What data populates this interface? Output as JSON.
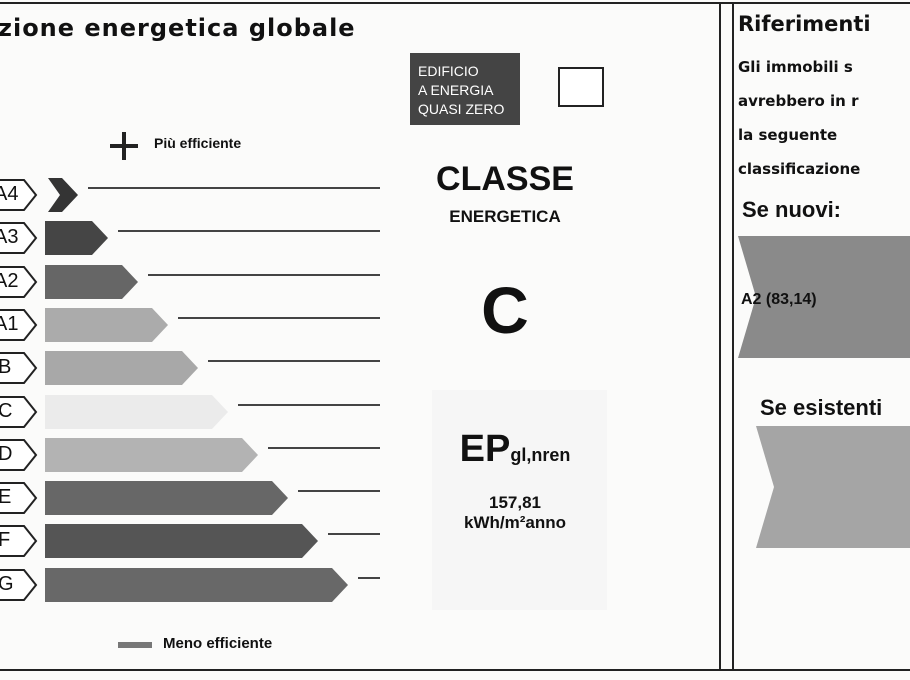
{
  "left_panel": {
    "title": "zione energetica globale",
    "more_efficient": "Più efficiente",
    "less_efficient": "Meno efficiente",
    "classes": [
      {
        "label": "A4",
        "color": "#343434"
      },
      {
        "label": "A3",
        "color": "#454545"
      },
      {
        "label": "A2",
        "color": "#666666"
      },
      {
        "label": "A1",
        "color": "#ababab"
      },
      {
        "label": "B",
        "color": "#a8a8a8"
      },
      {
        "label": "C",
        "color": "#ebebeb"
      },
      {
        "label": "D",
        "color": "#b3b3b3"
      },
      {
        "label": "E",
        "color": "#676767"
      },
      {
        "label": "F",
        "color": "#555555"
      },
      {
        "label": "G",
        "color": "#686868"
      }
    ],
    "nzeb": {
      "line1": "EDIFICIO",
      "line2": "A ENERGIA",
      "line3": "QUASI ZERO",
      "checked": false
    },
    "classe_label": "CLASSE",
    "energetica_label": "ENERGETICA",
    "class_value": "C",
    "ep_main": "EP",
    "ep_sub": "gl,nren",
    "ep_value": "157,81",
    "ep_unit": "kWh/m²anno"
  },
  "right_panel": {
    "title": "Riferimenti",
    "text_lines": [
      "Gli immobili s",
      "avrebbero in r",
      "la seguente",
      "classificazione"
    ],
    "new_label": "Se nuovi:",
    "new_value": "A2 (83,14)",
    "existing_label": "Se esistenti"
  }
}
